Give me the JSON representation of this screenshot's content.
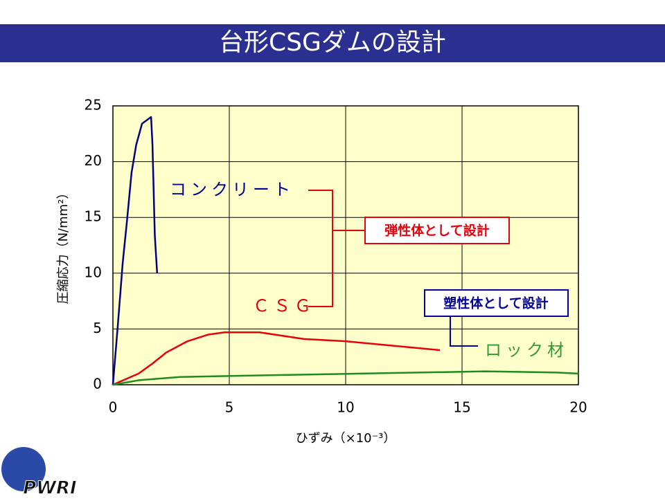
{
  "header": {
    "title": "台形CSGダムの設計"
  },
  "chart_data": {
    "type": "line",
    "xlabel": "ひずみ（×10⁻³）",
    "ylabel": "圧縮応力（N/mm²）",
    "xlim": [
      0,
      20
    ],
    "xticks": [
      0,
      5,
      10,
      15,
      20
    ],
    "ylim": [
      0,
      25
    ],
    "yticks": [
      0,
      5,
      10,
      15,
      20,
      25
    ],
    "grid": true,
    "background": "#ffffcc",
    "series": [
      {
        "name": "コンクリート",
        "color": "#000080",
        "x": [
          0,
          0.21,
          0.42,
          0.6,
          0.8,
          1.0,
          1.25,
          1.64,
          1.7,
          1.8,
          1.9
        ],
        "values": [
          0,
          5.3,
          10.9,
          14.6,
          19,
          21.5,
          23.4,
          24,
          21.5,
          13.4,
          10
        ]
      },
      {
        "name": "ＣＳＧ",
        "color": "#e8000b",
        "x": [
          0,
          1.1,
          1.7,
          2.3,
          3.2,
          4.1,
          4.8,
          6.3,
          8.2,
          10,
          14.05
        ],
        "values": [
          0,
          1.0,
          1.9,
          2.9,
          3.9,
          4.5,
          4.7,
          4.7,
          4.1,
          3.9,
          3.1
        ]
      },
      {
        "name": "ロック材",
        "color": "#1f8a1f",
        "x": [
          0,
          1.1,
          2.9,
          5.3,
          10.6,
          16,
          19,
          20
        ],
        "values": [
          0,
          0.4,
          0.7,
          0.8,
          1.0,
          1.2,
          1.1,
          1.0
        ]
      }
    ],
    "annotations": [
      "弾性体として設計",
      "塑性体として設計"
    ]
  },
  "logo": "PWRI"
}
